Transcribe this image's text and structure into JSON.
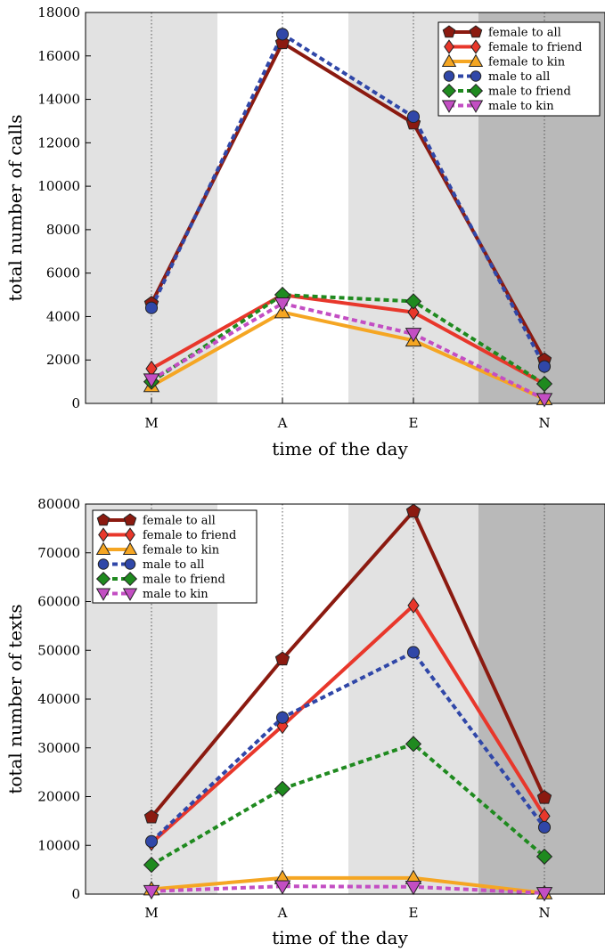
{
  "chart_data": [
    {
      "type": "line",
      "xlabel": "time of the day",
      "ylabel": "total number of calls",
      "categories": [
        "M",
        "A",
        "E",
        "N"
      ],
      "ylim": [
        0,
        18000
      ],
      "yticks": [
        0,
        2000,
        4000,
        6000,
        8000,
        10000,
        12000,
        14000,
        16000,
        18000
      ],
      "legend_position": "top-right",
      "grid": "vertical dotted lines at categories",
      "background_bands": [
        {
          "range": [
            "start",
            "M-A"
          ],
          "color": "#e2e2e2"
        },
        {
          "range": [
            "A-E",
            "E-N"
          ],
          "color": "#e2e2e2"
        },
        {
          "range": [
            "E-N",
            "end"
          ],
          "color": "#b9b9b9"
        }
      ],
      "series": [
        {
          "name": "female to all",
          "values": [
            4600,
            16600,
            12900,
            2000
          ],
          "color": "#8b1a10",
          "marker": "pentagon",
          "dashed": false
        },
        {
          "name": "female to friend",
          "values": [
            1600,
            5000,
            4200,
            900
          ],
          "color": "#e8372b",
          "marker": "diamond-thin",
          "dashed": false
        },
        {
          "name": "female to kin",
          "values": [
            800,
            4200,
            2900,
            200
          ],
          "color": "#f5a623",
          "marker": "triangle-up",
          "dashed": false
        },
        {
          "name": "male to all",
          "values": [
            4400,
            17000,
            13200,
            1700
          ],
          "color": "#3047a8",
          "marker": "circle",
          "dashed": true
        },
        {
          "name": "male to friend",
          "values": [
            1000,
            5000,
            4700,
            900
          ],
          "color": "#1f8a1f",
          "marker": "diamond",
          "dashed": true
        },
        {
          "name": "male to kin",
          "values": [
            1100,
            4600,
            3200,
            200
          ],
          "color": "#c34ec3",
          "marker": "triangle-down",
          "dashed": true
        }
      ]
    },
    {
      "type": "line",
      "xlabel": "time of the day",
      "ylabel": "total number of texts",
      "categories": [
        "M",
        "A",
        "E",
        "N"
      ],
      "ylim": [
        0,
        80000
      ],
      "yticks": [
        0,
        10000,
        20000,
        30000,
        40000,
        50000,
        60000,
        70000,
        80000
      ],
      "legend_position": "top-left",
      "grid": "vertical dotted lines at categories",
      "background_bands": [
        {
          "range": [
            "start",
            "M-A"
          ],
          "color": "#e2e2e2"
        },
        {
          "range": [
            "A-E",
            "E-N"
          ],
          "color": "#e2e2e2"
        },
        {
          "range": [
            "E-N",
            "end"
          ],
          "color": "#b9b9b9"
        }
      ],
      "series": [
        {
          "name": "female to all",
          "values": [
            15800,
            48200,
            78500,
            19800
          ],
          "color": "#8b1a10",
          "marker": "pentagon",
          "dashed": false
        },
        {
          "name": "female to friend",
          "values": [
            10500,
            34500,
            59200,
            16000
          ],
          "color": "#e8372b",
          "marker": "diamond-thin",
          "dashed": false
        },
        {
          "name": "female to kin",
          "values": [
            1000,
            3300,
            3300,
            200
          ],
          "color": "#f5a623",
          "marker": "triangle-up",
          "dashed": false
        },
        {
          "name": "male to all",
          "values": [
            10800,
            36200,
            49600,
            13700
          ],
          "color": "#3047a8",
          "marker": "circle",
          "dashed": true
        },
        {
          "name": "male to friend",
          "values": [
            6000,
            21600,
            30800,
            7700
          ],
          "color": "#1f8a1f",
          "marker": "diamond",
          "dashed": true
        },
        {
          "name": "male to kin",
          "values": [
            600,
            1600,
            1500,
            200
          ],
          "color": "#c34ec3",
          "marker": "triangle-down",
          "dashed": true
        }
      ]
    }
  ]
}
